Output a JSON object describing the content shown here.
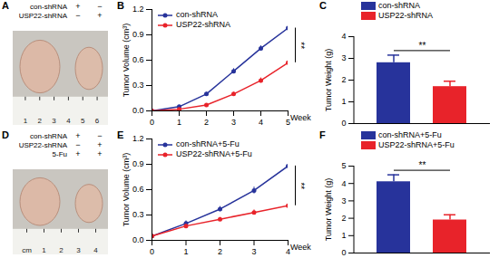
{
  "chart_data": [
    {
      "panel": "A",
      "type": "image",
      "rows": [
        {
          "label": "con-shRNA",
          "signs": [
            "+",
            "−"
          ]
        },
        {
          "label": "USP22-shRNA",
          "signs": [
            "−",
            "+"
          ]
        }
      ],
      "ruler_labels": [
        "1",
        "2",
        "3",
        "4",
        "5",
        "6"
      ]
    },
    {
      "panel": "B",
      "type": "line",
      "x": [
        0,
        1,
        2,
        3,
        4,
        5
      ],
      "xlim": [
        0,
        5
      ],
      "xticks": [
        0,
        1,
        2,
        3,
        4,
        5
      ],
      "x_label": "Week",
      "y_label": "Tumor Volume (cm³)",
      "ylim": [
        0,
        1.2
      ],
      "yticks": [
        {
          "value": 0,
          "label": "0.0"
        },
        0.3,
        0.6,
        0.9,
        1.2
      ],
      "marker": "circle",
      "legend": "top-left",
      "significance": "**",
      "series": [
        {
          "name": "con-shRNA",
          "color": "#27339b",
          "values": [
            0,
            0.05,
            0.2,
            0.47,
            0.74,
            0.98
          ],
          "errors": [
            0,
            0.01,
            0.02,
            0.03,
            0.03,
            0.04
          ]
        },
        {
          "name": "USP22-shRNA",
          "color": "#e8232a",
          "values": [
            0,
            0.02,
            0.07,
            0.2,
            0.36,
            0.57
          ],
          "errors": [
            0,
            0.01,
            0.01,
            0.02,
            0.03,
            0.03
          ]
        }
      ]
    },
    {
      "panel": "C",
      "type": "bar",
      "categories": [
        "con-shRNA",
        "USP22-shRNA"
      ],
      "values": [
        2.8,
        1.7
      ],
      "errors": [
        0.35,
        0.25
      ],
      "colors": [
        "#27339b",
        "#e8232a"
      ],
      "y_label": "Tumor Weight (g)",
      "ylim": [
        0,
        4
      ],
      "yticks": [
        0,
        1,
        2,
        3,
        4
      ],
      "tick_labels": "y",
      "legend": "top",
      "significance": "**"
    },
    {
      "panel": "D",
      "type": "image",
      "rows": [
        {
          "label": "con-shRNA",
          "signs": [
            "+",
            "−"
          ]
        },
        {
          "label": "USP22-shRNA",
          "signs": [
            "−",
            "+"
          ]
        },
        {
          "label": "5-Fu",
          "signs": [
            "+",
            "+"
          ]
        }
      ],
      "ruler_labels": [
        "cm",
        "1",
        "2",
        "3",
        "4"
      ]
    },
    {
      "panel": "E",
      "type": "line",
      "x": [
        0,
        1,
        2,
        3,
        4
      ],
      "xlim": [
        0,
        4
      ],
      "xticks": [
        0,
        1,
        2,
        3,
        4
      ],
      "x_label": "Week",
      "y_label": "Tumor Volume (cm³)",
      "ylim": [
        0,
        1.2
      ],
      "yticks": [
        {
          "value": 0,
          "label": "0.0"
        },
        0.3,
        0.6,
        0.9,
        1.2
      ],
      "marker": "circle",
      "legend": "top-left",
      "significance": "**",
      "series": [
        {
          "name": "con-shRNA+5-Fu",
          "color": "#27339b",
          "values": [
            0.05,
            0.2,
            0.37,
            0.59,
            0.88
          ],
          "errors": [
            0.01,
            0.03,
            0.03,
            0.04,
            0.05
          ]
        },
        {
          "name": "USP22-shRNA+5-Fu",
          "color": "#e8232a",
          "values": [
            0.05,
            0.17,
            0.25,
            0.33,
            0.41
          ],
          "errors": [
            0.01,
            0.02,
            0.02,
            0.03,
            0.03
          ]
        }
      ]
    },
    {
      "panel": "F",
      "type": "bar",
      "categories": [
        "con-shRNA+5-Fu",
        "USP22-shRNA+5-Fu"
      ],
      "values": [
        4.1,
        1.9
      ],
      "errors": [
        0.4,
        0.3
      ],
      "colors": [
        "#27339b",
        "#e8232a"
      ],
      "y_label": "Tumor Weight (g)",
      "ylim": [
        0,
        5
      ],
      "yticks": [
        0,
        1,
        2,
        3,
        4,
        5
      ],
      "tick_labels": "y",
      "legend": "top",
      "significance": "**"
    }
  ]
}
